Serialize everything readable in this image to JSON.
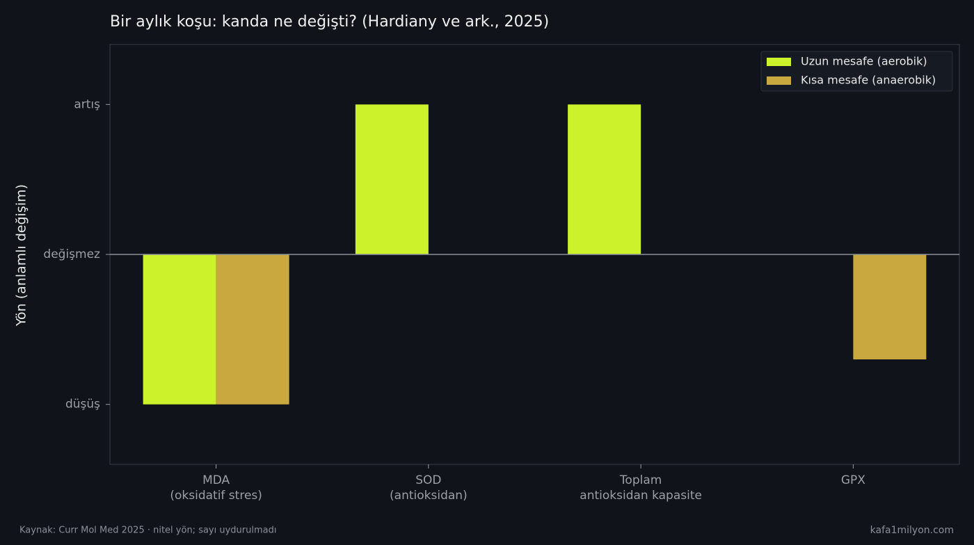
{
  "chart_data": {
    "type": "bar",
    "title": "Bir aylık koşu: kanda ne değişti? (Hardiany ve ark., 2025)",
    "y_label": "Yön (anlamlı değişim)",
    "categories": [
      "MDA\n(oksidatif stres)",
      "SOD\n(antioksidan)",
      "Toplam\nantioksidan kapasite",
      "GPX"
    ],
    "series": [
      {
        "name": "Uzun mesafe (aerobik)",
        "color": "#cbf22a",
        "values": [
          -1,
          1,
          1,
          0
        ]
      },
      {
        "name": "Kısa mesafe (anaerobik)",
        "color": "#c9a840",
        "values": [
          -1,
          0,
          0,
          -0.7
        ]
      }
    ],
    "ylim": [
      -1.4,
      1.4
    ],
    "yticks": [
      {
        "value": -1,
        "label": "düşüş"
      },
      {
        "value": 0,
        "label": "değişmez"
      },
      {
        "value": 1,
        "label": "artış"
      }
    ],
    "legend": "upper right",
    "source": "Kaynak: Curr Mol Med 2025 · nitel yön; sayı uydurulmadı",
    "site": "kafa1milyon.com"
  }
}
